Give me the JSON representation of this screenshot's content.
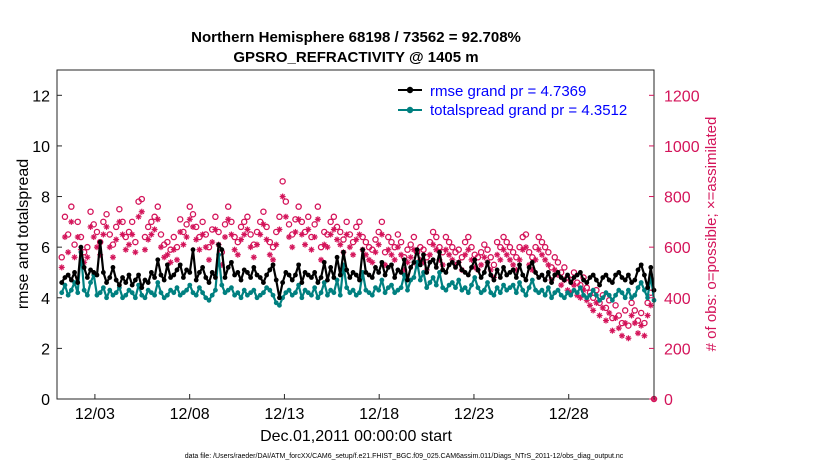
{
  "chart_data": {
    "type": "line",
    "title_line1": "Northern Hemisphere 68198 / 73562 = 92.708%",
    "title_line2": "GPSRO_REFRACTIVITY @ 1405 m",
    "xlabel": "Dec.01,2011 00:00:00 start",
    "ylabel": "rmse and totalspread",
    "ylabel_right": "# of obs: o=possible; ×=assimilated",
    "xlim": [
      1,
      32.5
    ],
    "ylim": [
      0,
      13
    ],
    "ylim_right": [
      0,
      1300
    ],
    "x_ticks": [
      {
        "x": 3,
        "label": "12/03"
      },
      {
        "x": 8,
        "label": "12/08"
      },
      {
        "x": 13,
        "label": "12/13"
      },
      {
        "x": 18,
        "label": "12/18"
      },
      {
        "x": 23,
        "label": "12/23"
      },
      {
        "x": 28,
        "label": "12/28"
      }
    ],
    "y_ticks": [
      "0",
      "2",
      "4",
      "6",
      "8",
      "10",
      "12"
    ],
    "y_ticks_right": [
      "0",
      "200",
      "400",
      "600",
      "800",
      "1000",
      "1200"
    ],
    "legend": [
      {
        "name": "rmse grand pr = 4.7369",
        "color": "#000000"
      },
      {
        "name": "totalspread grand pr = 4.3512",
        "color": "#008080"
      }
    ],
    "colors": {
      "rmse": "#000000",
      "spread": "#008080",
      "obs": "#d4145a"
    },
    "series": [
      {
        "name": "rmse",
        "values": [
          4.6,
          4.8,
          4.9,
          4.7,
          5.0,
          4.6,
          6.0,
          5.2,
          4.8,
          5.1,
          5.0,
          4.9,
          6.2,
          5.0,
          4.6,
          4.8,
          5.2,
          4.7,
          4.5,
          4.8,
          4.6,
          4.9,
          4.5,
          4.7,
          4.9,
          4.4,
          4.7,
          4.6,
          5.0,
          4.8,
          5.5,
          4.9,
          4.7,
          5.3,
          4.8,
          4.9,
          5.1,
          5.3,
          4.8,
          5.1,
          5.0,
          5.9,
          4.7,
          5.0,
          5.2,
          4.8,
          4.6,
          5.0,
          4.8,
          6.1,
          5.9,
          4.8,
          5.2,
          5.4,
          4.9,
          5.0,
          4.7,
          5.1,
          5.0,
          4.8,
          5.2,
          4.9,
          4.8,
          4.6,
          4.9,
          5.1,
          5.3,
          4.7,
          4.0,
          4.6,
          5.0,
          4.9,
          4.7,
          4.9,
          5.3,
          4.6,
          5.0,
          4.9,
          4.8,
          5.0,
          4.6,
          4.8,
          5.4,
          4.7,
          5.2,
          4.8,
          5.6,
          4.9,
          5.8,
          5.1,
          4.8,
          5.0,
          4.9,
          4.7,
          5.9,
          5.0,
          4.9,
          4.8,
          5.2,
          5.0,
          5.4,
          4.9,
          5.2,
          5.3,
          4.8,
          5.1,
          5.0,
          5.5,
          4.7,
          5.2,
          5.4,
          5.9,
          5.3,
          5.7,
          5.0,
          5.4,
          5.5,
          5.2,
          5.8,
          5.1,
          5.0,
          5.3,
          5.4,
          5.2,
          5.4,
          5.1,
          5.0,
          4.9,
          5.2,
          5.5,
          5.1,
          4.8,
          5.0,
          5.4,
          4.9,
          4.7,
          5.1,
          4.8,
          5.2,
          4.9,
          5.0,
          5.1,
          4.8,
          5.3,
          4.9,
          4.7,
          5.2,
          5.4,
          5.0,
          4.8,
          4.9,
          4.7,
          5.0,
          4.6,
          4.9,
          5.0,
          4.8,
          4.7,
          4.9,
          4.6,
          4.8,
          4.9,
          5.0,
          4.7,
          4.6,
          4.8,
          4.9,
          4.7,
          4.5,
          4.8,
          4.9,
          4.7,
          4.6,
          4.9,
          5.0,
          4.8,
          4.7,
          4.9,
          4.6,
          4.7,
          5.1,
          5.3,
          4.9,
          4.4,
          5.2,
          4.3
        ]
      },
      {
        "name": "totalspread",
        "values": [
          4.2,
          4.5,
          4.1,
          4.3,
          4.6,
          4.2,
          5.8,
          4.3,
          4.1,
          4.6,
          4.9,
          4.1,
          4.2,
          4.4,
          4.0,
          4.3,
          4.1,
          4.2,
          4.4,
          4.0,
          4.1,
          4.3,
          4.2,
          4.0,
          4.5,
          4.1,
          4.0,
          4.3,
          4.2,
          4.1,
          4.6,
          4.2,
          4.0,
          4.1,
          4.3,
          4.2,
          4.4,
          4.1,
          4.2,
          4.3,
          4.5,
          4.2,
          4.1,
          4.4,
          4.2,
          4.0,
          3.9,
          4.1,
          4.3,
          5.7,
          4.5,
          4.2,
          4.3,
          4.4,
          4.1,
          4.2,
          4.0,
          4.3,
          4.1,
          4.2,
          4.3,
          4.0,
          4.1,
          4.2,
          4.4,
          4.3,
          4.1,
          3.8,
          3.7,
          4.0,
          4.2,
          4.3,
          4.1,
          4.2,
          4.5,
          4.0,
          4.3,
          4.2,
          4.1,
          4.4,
          4.0,
          4.2,
          4.6,
          4.1,
          4.3,
          4.2,
          4.7,
          4.1,
          5.3,
          4.4,
          4.2,
          4.3,
          4.1,
          4.2,
          5.0,
          4.3,
          4.2,
          4.1,
          4.4,
          4.3,
          4.7,
          4.2,
          4.4,
          4.5,
          4.2,
          4.3,
          4.4,
          4.9,
          4.3,
          4.7,
          4.8,
          5.4,
          4.7,
          5.0,
          4.4,
          4.6,
          4.8,
          4.5,
          5.0,
          4.4,
          4.3,
          4.5,
          4.6,
          4.4,
          4.7,
          4.3,
          4.4,
          4.2,
          4.5,
          4.8,
          4.4,
          4.2,
          4.3,
          4.6,
          4.2,
          4.1,
          4.4,
          4.2,
          4.5,
          4.3,
          4.4,
          4.5,
          4.2,
          4.6,
          4.3,
          4.1,
          4.4,
          4.7,
          4.3,
          4.2,
          4.3,
          4.1,
          4.4,
          4.0,
          4.2,
          4.3,
          4.1,
          4.0,
          4.2,
          4.1,
          4.3,
          4.2,
          4.4,
          4.1,
          4.0,
          4.1,
          4.3,
          4.1,
          3.9,
          4.0,
          4.2,
          4.1,
          3.9,
          4.1,
          4.3,
          4.2,
          4.0,
          4.3,
          4.0,
          4.1,
          4.4,
          4.6,
          4.3,
          4.0,
          4.9,
          3.9
        ]
      },
      {
        "name": "possible",
        "values": [
          560,
          720,
          650,
          760,
          610,
          700,
          640,
          580,
          600,
          740,
          690,
          660,
          620,
          700,
          730,
          650,
          610,
          680,
          750,
          700,
          640,
          660,
          700,
          620,
          780,
          790,
          640,
          680,
          700,
          720,
          760,
          650,
          610,
          620,
          590,
          640,
          600,
          710,
          660,
          690,
          760,
          730,
          680,
          640,
          700,
          650,
          600,
          670,
          720,
          660,
          580,
          690,
          760,
          700,
          640,
          620,
          680,
          700,
          720,
          650,
          610,
          660,
          700,
          740,
          680,
          620,
          600,
          660,
          720,
          860,
          780,
          690,
          650,
          710,
          760,
          700,
          660,
          720,
          640,
          690,
          760,
          600,
          660,
          650,
          700,
          720,
          680,
          660,
          630,
          700,
          650,
          620,
          680,
          700,
          640,
          620,
          600,
          590,
          630,
          660,
          700,
          580,
          640,
          620,
          600,
          650,
          620,
          560,
          590,
          610,
          640,
          580,
          600,
          590,
          560,
          620,
          660,
          640,
          600,
          580,
          640,
          620,
          600,
          580,
          590,
          560,
          620,
          640,
          600,
          570,
          560,
          580,
          610,
          590,
          560,
          530,
          620,
          600,
          640,
          620,
          600,
          580,
          560,
          600,
          640,
          650,
          580,
          560,
          600,
          640,
          620,
          600,
          580,
          520,
          560,
          540,
          500,
          520,
          480,
          470,
          500,
          460,
          450,
          480,
          440,
          420,
          400,
          430,
          380,
          410,
          360,
          390,
          320,
          370,
          330,
          300,
          350,
          290,
          380,
          350,
          310,
          340,
          300,
          380,
          420,
          0
        ]
      },
      {
        "name": "assimilated",
        "values": [
          520,
          640,
          580,
          700,
          560,
          640,
          590,
          540,
          560,
          680,
          640,
          600,
          570,
          650,
          680,
          600,
          560,
          630,
          700,
          650,
          590,
          610,
          650,
          580,
          720,
          740,
          590,
          630,
          650,
          670,
          710,
          600,
          560,
          570,
          540,
          590,
          550,
          660,
          610,
          640,
          710,
          680,
          630,
          590,
          650,
          600,
          550,
          620,
          670,
          610,
          530,
          640,
          710,
          650,
          590,
          570,
          630,
          650,
          670,
          600,
          560,
          610,
          650,
          690,
          630,
          570,
          550,
          610,
          670,
          800,
          720,
          640,
          600,
          660,
          710,
          650,
          610,
          670,
          590,
          640,
          710,
          550,
          610,
          600,
          650,
          670,
          630,
          610,
          580,
          650,
          600,
          570,
          630,
          650,
          590,
          570,
          550,
          540,
          580,
          610,
          650,
          530,
          590,
          570,
          550,
          600,
          570,
          510,
          540,
          560,
          590,
          530,
          550,
          540,
          510,
          570,
          610,
          590,
          550,
          530,
          590,
          570,
          550,
          530,
          540,
          510,
          570,
          590,
          550,
          520,
          510,
          530,
          560,
          540,
          510,
          480,
          570,
          550,
          590,
          570,
          550,
          530,
          510,
          550,
          590,
          600,
          530,
          510,
          550,
          590,
          570,
          550,
          530,
          470,
          510,
          490,
          450,
          470,
          430,
          420,
          450,
          410,
          400,
          430,
          390,
          370,
          350,
          380,
          330,
          360,
          310,
          340,
          270,
          320,
          280,
          250,
          300,
          240,
          330,
          300,
          260,
          290,
          250,
          330,
          370,
          0
        ]
      }
    ]
  },
  "footer": "data file: /Users/raeder/DAI/ATM_forcXX/CAM6_setup/f.e21.FHIST_BGC.f09_025.CAM6assim.011/Diags_NTrS_2011-12/obs_diag_output.nc"
}
